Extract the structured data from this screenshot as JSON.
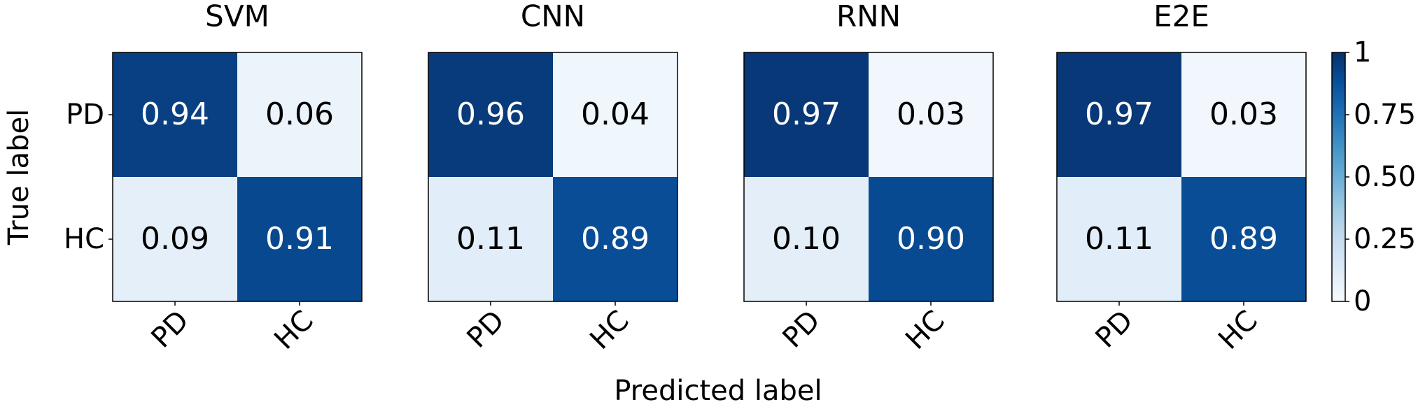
{
  "chart_data": [
    {
      "type": "heatmap",
      "title": "SVM",
      "x_categories": [
        "PD",
        "HC"
      ],
      "y_categories": [
        "PD",
        "HC"
      ],
      "values": [
        [
          0.94,
          0.06
        ],
        [
          0.09,
          0.91
        ]
      ]
    },
    {
      "type": "heatmap",
      "title": "CNN",
      "x_categories": [
        "PD",
        "HC"
      ],
      "values": [
        [
          0.96,
          0.04
        ],
        [
          0.11,
          0.89
        ]
      ]
    },
    {
      "type": "heatmap",
      "title": "RNN",
      "x_categories": [
        "PD",
        "HC"
      ],
      "values": [
        [
          0.97,
          0.03
        ],
        [
          0.1,
          0.9
        ]
      ],
      "value_labels": [
        [
          "0.97",
          "0.03"
        ],
        [
          "0.10",
          "0.90"
        ]
      ]
    },
    {
      "type": "heatmap",
      "title": "E2E",
      "x_categories": [
        "PD",
        "HC"
      ],
      "values": [
        [
          0.97,
          0.03
        ],
        [
          0.11,
          0.89
        ]
      ]
    }
  ],
  "xlabel": "Predicted label",
  "ylabel": "True label",
  "colorbar": {
    "lim": [
      0,
      1
    ],
    "ticks": [
      0,
      0.25,
      {
        "value": 0.5,
        "label": "0.50"
      },
      0.75,
      1
    ],
    "colormap": [
      "#f7fbff",
      "#deebf7",
      "#c6dbef",
      "#9ecae1",
      "#6baed6",
      "#4292c6",
      "#2171b5",
      "#08519c",
      "#08306b"
    ]
  }
}
